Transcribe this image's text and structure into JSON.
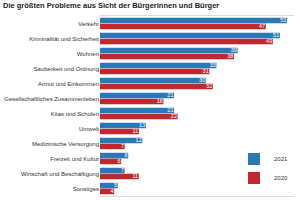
{
  "chart_data": {
    "type": "bar",
    "title": "Die größten Probleme aus Sicht der Bürgerinnen und Bürger",
    "orientation": "horizontal",
    "categories": [
      "Verkehr",
      "Kriminalität und Sicherheit",
      "Wohnen",
      "Sauberkeit und Ordnung",
      "Armut und Einkommen",
      "Gesellschaftliches Zusammenleben",
      "Kitas und Schulen",
      "Umwelt",
      "Medizinische Versorgung",
      "Freizeit und Kultur",
      "Wirtschaft und Beschäftigung",
      "Sonstiges"
    ],
    "series": [
      {
        "name": "2021",
        "color": "#2a78b8",
        "values": [
          53,
          51,
          39,
          33,
          30,
          21,
          21,
          13,
          12,
          8,
          7,
          5
        ]
      },
      {
        "name": "2020",
        "color": "#c0282d",
        "values": [
          47,
          49,
          38,
          31,
          32,
          18,
          22,
          11,
          7,
          6,
          11,
          4
        ]
      }
    ],
    "xlim": [
      0,
      55
    ],
    "xticks": [],
    "tick_labels": "y",
    "grid": false,
    "data_labels": true,
    "legend": "bottom right"
  }
}
